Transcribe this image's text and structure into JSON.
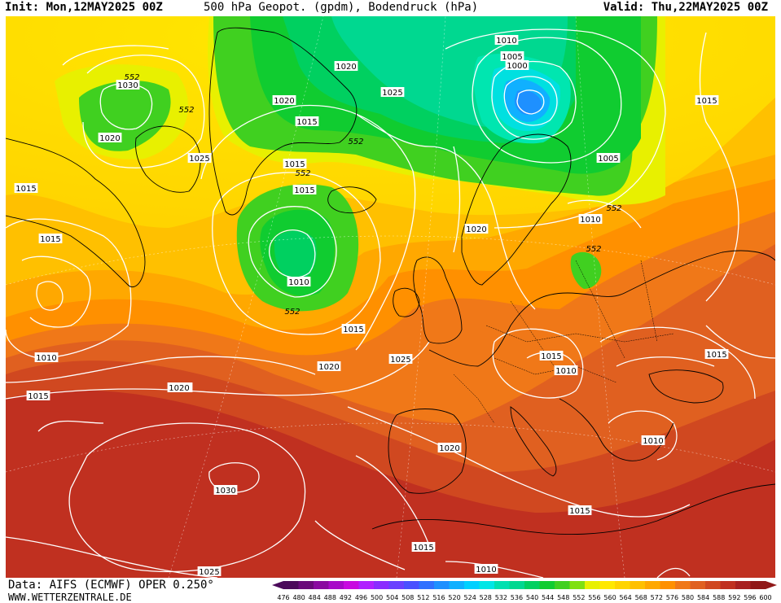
{
  "header": {
    "init": "Init: Mon,12MAY2025 00Z",
    "title": "500 hPa Geopot. (gpdm), Bodendruck (hPa)",
    "valid": "Valid: Thu,22MAY2025 00Z"
  },
  "footer": {
    "data_source": "Data: AIFS (ECMWF) OPER 0.250°",
    "website": "WWW.WETTERZENTRALE.DE"
  },
  "legend": {
    "ticks": [
      "476",
      "480",
      "484",
      "488",
      "492",
      "496",
      "500",
      "504",
      "508",
      "512",
      "516",
      "520",
      "524",
      "528",
      "532",
      "536",
      "540",
      "544",
      "548",
      "552",
      "556",
      "560",
      "564",
      "568",
      "572",
      "576",
      "580",
      "584",
      "588",
      "592",
      "596",
      "600"
    ],
    "colors": [
      "#4b0a5a",
      "#6a0a7a",
      "#8a0aa0",
      "#a80ac8",
      "#c80ae0",
      "#b020ff",
      "#8a2cff",
      "#6a40ff",
      "#4a50ff",
      "#3070ff",
      "#1e90ff",
      "#10b0ff",
      "#00d0ff",
      "#00e6e6",
      "#00e0b0",
      "#00d890",
      "#00d060",
      "#10cc30",
      "#40d020",
      "#80e010",
      "#e8f000",
      "#ffe800",
      "#ffd400",
      "#ffc000",
      "#ffa800",
      "#ff9000",
      "#f07818",
      "#e06020",
      "#d04820",
      "#c03020",
      "#a82020",
      "#901818"
    ]
  },
  "isobar_labels": [
    {
      "text": "1030"
    },
    {
      "text": "552"
    },
    {
      "text": "1020"
    },
    {
      "text": "552"
    },
    {
      "text": "1025"
    },
    {
      "text": "1020"
    },
    {
      "text": "1020"
    },
    {
      "text": "1015"
    },
    {
      "text": "1025"
    },
    {
      "text": "552"
    },
    {
      "text": "1015"
    },
    {
      "text": "552"
    },
    {
      "text": "1015"
    },
    {
      "text": "1010"
    },
    {
      "text": "1005"
    },
    {
      "text": "1000"
    },
    {
      "text": "1005"
    },
    {
      "text": "1015"
    },
    {
      "text": "1015"
    },
    {
      "text": "1015"
    },
    {
      "text": "1010"
    },
    {
      "text": "552"
    },
    {
      "text": "1020"
    },
    {
      "text": "1010"
    },
    {
      "text": "552"
    },
    {
      "text": "552"
    },
    {
      "text": "1010"
    },
    {
      "text": "1015"
    },
    {
      "text": "1020"
    },
    {
      "text": "1025"
    },
    {
      "text": "1015"
    },
    {
      "text": "1010"
    },
    {
      "text": "1015"
    },
    {
      "text": "1010"
    },
    {
      "text": "1020"
    },
    {
      "text": "1015"
    },
    {
      "text": "1010"
    },
    {
      "text": "1030"
    },
    {
      "text": "1020"
    },
    {
      "text": "1015"
    },
    {
      "text": "1025"
    },
    {
      "text": "1015"
    },
    {
      "text": "1010"
    }
  ],
  "colors": {
    "background": "#ffffff",
    "isobar": "#ffffff",
    "coastline": "#000000"
  }
}
